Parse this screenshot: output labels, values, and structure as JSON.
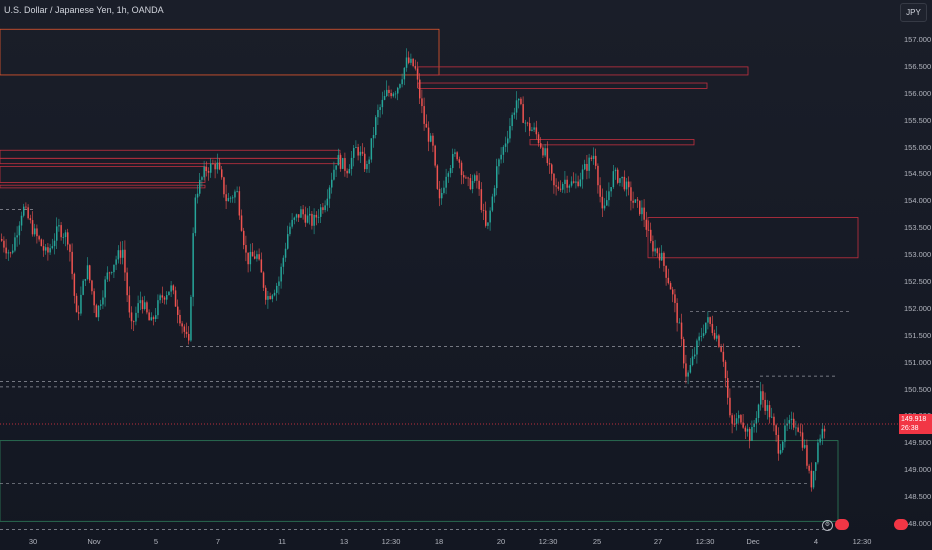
{
  "header": {
    "title": "U.S. Dollar / Japanese Yen, 1h, OANDA",
    "currency_button": "JPY"
  },
  "axis": {
    "y_ticks": [
      "157.000",
      "156.500",
      "156.000",
      "155.500",
      "155.000",
      "154.500",
      "154.000",
      "153.500",
      "153.000",
      "152.500",
      "152.000",
      "151.500",
      "151.000",
      "150.500",
      "150.000",
      "149.500",
      "149.000",
      "148.500",
      "148.000"
    ],
    "x_ticks": [
      "30",
      "Nov",
      "5",
      "7",
      "11",
      "13",
      "12:30",
      "18",
      "20",
      "12:30",
      "25",
      "27",
      "12:30",
      "Dec",
      "4",
      "12:30"
    ]
  },
  "last_price": {
    "value": "149.918",
    "countdown": "26:38"
  },
  "colors": {
    "up": "#26a69a",
    "down": "#ef5350",
    "zone_orange": "#e4572e",
    "zone_red": "#c2303f",
    "zone_green": "#2e7d5b",
    "level_line": "#9598a1",
    "price_label": "#f23645"
  },
  "chart_data": {
    "type": "candlestick",
    "symbol": "USDJPY",
    "interval": "1h",
    "ylim": [
      147.85,
      157.35
    ],
    "path": [
      [
        0,
        153.3
      ],
      [
        10,
        153.0
      ],
      [
        22,
        153.9
      ],
      [
        34,
        153.4
      ],
      [
        46,
        153.0
      ],
      [
        58,
        153.5
      ],
      [
        68,
        153.3
      ],
      [
        76,
        151.8
      ],
      [
        86,
        152.8
      ],
      [
        96,
        151.9
      ],
      [
        106,
        152.6
      ],
      [
        114,
        152.9
      ],
      [
        122,
        153.1
      ],
      [
        130,
        151.6
      ],
      [
        140,
        152.2
      ],
      [
        150,
        151.7
      ],
      [
        160,
        152.2
      ],
      [
        170,
        152.4
      ],
      [
        180,
        151.8
      ],
      [
        188,
        151.3
      ],
      [
        194,
        154.1
      ],
      [
        205,
        154.6
      ],
      [
        216,
        154.7
      ],
      [
        226,
        154.0
      ],
      [
        236,
        154.2
      ],
      [
        246,
        152.9
      ],
      [
        256,
        153.0
      ],
      [
        266,
        152.2
      ],
      [
        278,
        152.5
      ],
      [
        288,
        153.5
      ],
      [
        300,
        153.8
      ],
      [
        312,
        153.6
      ],
      [
        324,
        154.0
      ],
      [
        336,
        154.8
      ],
      [
        346,
        154.6
      ],
      [
        356,
        155.0
      ],
      [
        366,
        154.6
      ],
      [
        376,
        155.6
      ],
      [
        386,
        156.0
      ],
      [
        396,
        156.1
      ],
      [
        406,
        156.6
      ],
      [
        414,
        156.5
      ],
      [
        424,
        155.4
      ],
      [
        432,
        155.0
      ],
      [
        438,
        153.9
      ],
      [
        446,
        154.6
      ],
      [
        456,
        154.9
      ],
      [
        466,
        154.3
      ],
      [
        476,
        154.4
      ],
      [
        486,
        153.4
      ],
      [
        496,
        154.6
      ],
      [
        506,
        155.2
      ],
      [
        516,
        155.9
      ],
      [
        526,
        155.4
      ],
      [
        534,
        155.3
      ],
      [
        544,
        154.9
      ],
      [
        554,
        154.2
      ],
      [
        564,
        154.4
      ],
      [
        574,
        154.3
      ],
      [
        584,
        154.6
      ],
      [
        594,
        154.9
      ],
      [
        602,
        153.7
      ],
      [
        612,
        154.5
      ],
      [
        622,
        154.4
      ],
      [
        632,
        154.0
      ],
      [
        642,
        153.8
      ],
      [
        650,
        153.2
      ],
      [
        660,
        153.0
      ],
      [
        670,
        152.4
      ],
      [
        678,
        151.7
      ],
      [
        686,
        150.7
      ],
      [
        696,
        151.3
      ],
      [
        706,
        151.8
      ],
      [
        716,
        151.5
      ],
      [
        722,
        151.2
      ],
      [
        730,
        149.8
      ],
      [
        740,
        150.0
      ],
      [
        750,
        149.6
      ],
      [
        760,
        150.4
      ],
      [
        770,
        150.0
      ],
      [
        778,
        149.4
      ],
      [
        786,
        149.8
      ],
      [
        796,
        149.9
      ],
      [
        804,
        149.4
      ],
      [
        810,
        148.7
      ],
      [
        818,
        149.6
      ],
      [
        826,
        149.9
      ]
    ]
  },
  "zones": [
    {
      "x1": 0,
      "x2": 439,
      "y1": 157.2,
      "y2": 156.35,
      "color": "zone_orange"
    },
    {
      "x1": 0,
      "x2": 340,
      "y1": 154.95,
      "y2": 154.8,
      "color": "zone_red"
    },
    {
      "x1": 0,
      "x2": 340,
      "y1": 154.8,
      "y2": 154.7,
      "color": "zone_red"
    },
    {
      "x1": 0,
      "x2": 205,
      "y1": 154.65,
      "y2": 154.35,
      "color": "zone_red"
    },
    {
      "x1": 0,
      "x2": 205,
      "y1": 154.3,
      "y2": 154.25,
      "color": "zone_red"
    },
    {
      "x1": 418,
      "x2": 748,
      "y1": 156.5,
      "y2": 156.35,
      "color": "zone_red"
    },
    {
      "x1": 418,
      "x2": 707,
      "y1": 156.2,
      "y2": 156.1,
      "color": "zone_red"
    },
    {
      "x1": 530,
      "x2": 694,
      "y1": 155.15,
      "y2": 155.05,
      "color": "zone_red"
    },
    {
      "x1": 648,
      "x2": 858,
      "y1": 153.7,
      "y2": 152.95,
      "color": "zone_red"
    },
    {
      "x1": 0,
      "x2": 838,
      "y1": 149.55,
      "y2": 148.05,
      "color": "zone_green"
    }
  ],
  "levels": [
    {
      "x1": 0,
      "x2": 36,
      "y": 153.85
    },
    {
      "x1": 180,
      "x2": 800,
      "y": 151.3
    },
    {
      "x1": 0,
      "x2": 760,
      "y": 150.65
    },
    {
      "x1": 0,
      "x2": 760,
      "y": 150.55
    },
    {
      "x1": 690,
      "x2": 850,
      "y": 151.95
    },
    {
      "x1": 760,
      "x2": 835,
      "y": 150.75
    },
    {
      "x1": 0,
      "x2": 810,
      "y": 148.75
    },
    {
      "x1": 0,
      "x2": 830,
      "y": 147.9
    }
  ]
}
